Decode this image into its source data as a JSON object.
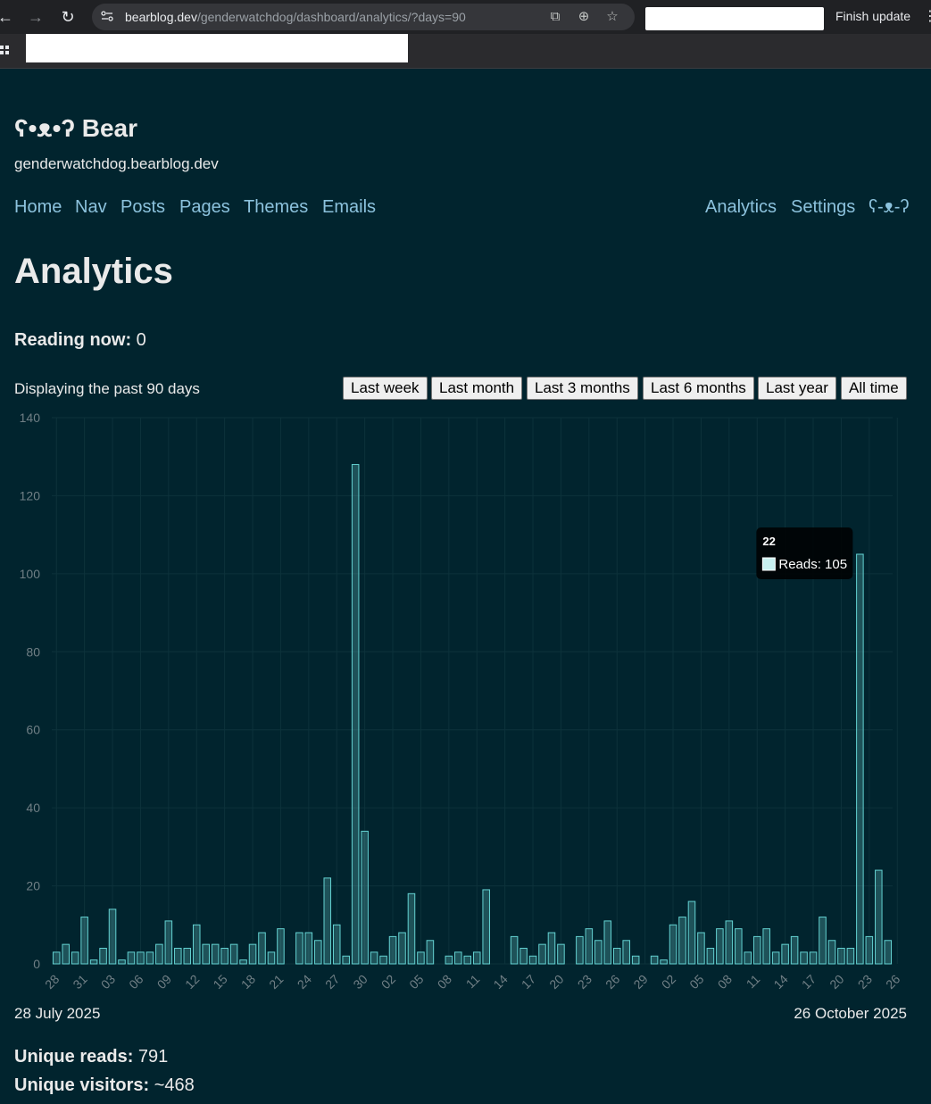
{
  "browser": {
    "url_host": "bearblog.dev",
    "url_path": "/genderwatchdog/dashboard/analytics/?days=90",
    "update_label": "Finish update"
  },
  "site": {
    "logo": "ʕ•ᴥ•ʔ Bear",
    "domain": "genderwatchdog.bearblog.dev"
  },
  "nav": {
    "left": [
      "Home",
      "Nav",
      "Posts",
      "Pages",
      "Themes",
      "Emails"
    ],
    "right": [
      "Analytics",
      "Settings",
      "ʕ-ᴥ-ʔ"
    ]
  },
  "page": {
    "title": "Analytics",
    "reading_now_label": "Reading now:",
    "reading_now_value": "0",
    "display_text": "Displaying the past 90 days",
    "range_buttons": [
      "Last week",
      "Last month",
      "Last 3 months",
      "Last 6 months",
      "Last year",
      "All time"
    ],
    "date_start": "28 July 2025",
    "date_end": "26 October 2025",
    "unique_reads_label": "Unique reads:",
    "unique_reads_value": "791",
    "unique_visitors_label": "Unique visitors:",
    "unique_visitors_value": "~468"
  },
  "tooltip": {
    "title": "22",
    "label": "Reads: 105"
  },
  "colors": {
    "background": "#01242e",
    "link": "#8cc2dd",
    "bar_stroke": "#64d2d2"
  },
  "chart_data": {
    "type": "bar",
    "series": [
      {
        "name": "Reads",
        "values": [
          3,
          5,
          3,
          12,
          1,
          4,
          14,
          1,
          3,
          3,
          3,
          5,
          11,
          4,
          4,
          10,
          5,
          5,
          4,
          5,
          1,
          5,
          8,
          3,
          9,
          0,
          8,
          8,
          6,
          22,
          10,
          2,
          128,
          34,
          3,
          2,
          7,
          8,
          18,
          3,
          6,
          0,
          2,
          3,
          2,
          3,
          19,
          0,
          0,
          7,
          4,
          2,
          5,
          8,
          5,
          0,
          7,
          9,
          6,
          11,
          4,
          6,
          2,
          0,
          2,
          1,
          10,
          12,
          16,
          8,
          4,
          9,
          11,
          9,
          3,
          7,
          9,
          3,
          5,
          7,
          3,
          3,
          12,
          6,
          4,
          4,
          105,
          7,
          24,
          6
        ]
      }
    ],
    "x_tick_labels": [
      "28",
      "31",
      "03",
      "06",
      "09",
      "12",
      "15",
      "18",
      "21",
      "24",
      "27",
      "30",
      "02",
      "05",
      "08",
      "11",
      "14",
      "17",
      "20",
      "23",
      "26",
      "29",
      "02",
      "05",
      "08",
      "11",
      "14",
      "17",
      "20",
      "23",
      "26"
    ],
    "ylim": [
      0,
      140
    ],
    "y_ticks": [
      0,
      20,
      40,
      60,
      80,
      100,
      120,
      140
    ],
    "grid": true
  }
}
